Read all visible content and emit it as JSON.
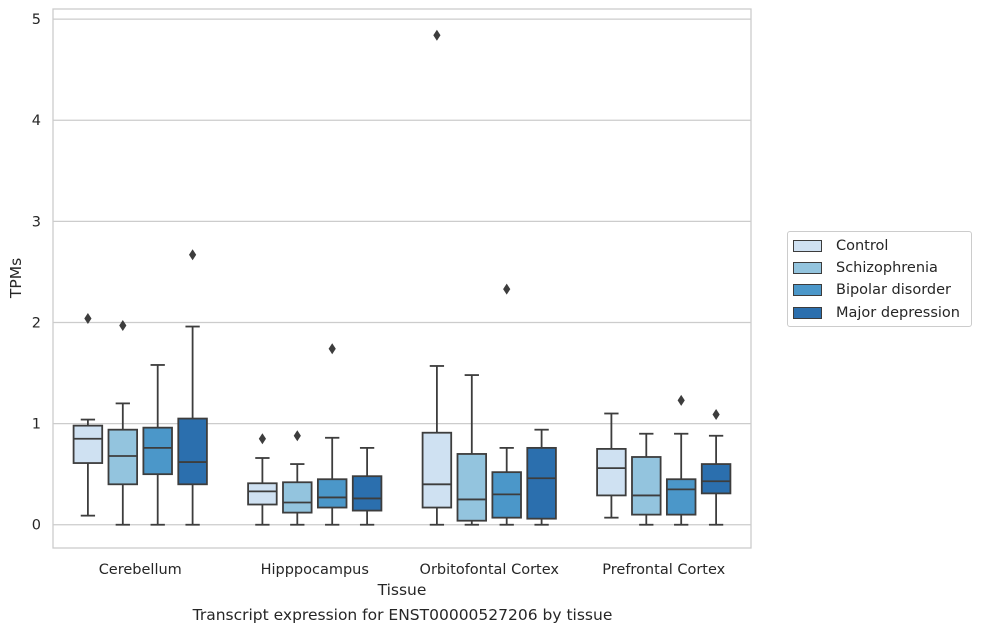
{
  "caption": "Transcript expression for ENST00000527206 by tissue",
  "chart_data": {
    "type": "box",
    "xlabel": "Tissue",
    "ylabel": "TPMs",
    "ylim": [
      -0.23,
      5.1
    ],
    "yticks": [
      0,
      1,
      2,
      3,
      4,
      5
    ],
    "grid": true,
    "legend_position": "right",
    "categories": [
      "Cerebellum",
      "Hipppocampus",
      "Orbitofontal Cortex",
      "Prefrontal Cortex"
    ],
    "series": [
      {
        "name": "Control",
        "color": "#cfe1f2",
        "boxes": [
          {
            "whisker_low": 0.09,
            "q1": 0.61,
            "median": 0.85,
            "q3": 0.98,
            "whisker_high": 1.04,
            "outliers": [
              2.04
            ]
          },
          {
            "whisker_low": 0.0,
            "q1": 0.2,
            "median": 0.33,
            "q3": 0.41,
            "whisker_high": 0.66,
            "outliers": [
              0.85
            ]
          },
          {
            "whisker_low": 0.0,
            "q1": 0.17,
            "median": 0.4,
            "q3": 0.91,
            "whisker_high": 1.57,
            "outliers": [
              4.84
            ]
          },
          {
            "whisker_low": 0.07,
            "q1": 0.29,
            "median": 0.56,
            "q3": 0.75,
            "whisker_high": 1.1,
            "outliers": []
          }
        ]
      },
      {
        "name": "Schizophrenia",
        "color": "#93c4de",
        "boxes": [
          {
            "whisker_low": 0.0,
            "q1": 0.4,
            "median": 0.68,
            "q3": 0.94,
            "whisker_high": 1.2,
            "outliers": [
              1.97
            ]
          },
          {
            "whisker_low": 0.0,
            "q1": 0.12,
            "median": 0.22,
            "q3": 0.42,
            "whisker_high": 0.6,
            "outliers": [
              0.88
            ]
          },
          {
            "whisker_low": 0.0,
            "q1": 0.04,
            "median": 0.25,
            "q3": 0.7,
            "whisker_high": 1.48,
            "outliers": []
          },
          {
            "whisker_low": 0.0,
            "q1": 0.1,
            "median": 0.29,
            "q3": 0.67,
            "whisker_high": 0.9,
            "outliers": []
          }
        ]
      },
      {
        "name": "Bipolar disorder",
        "color": "#4b97c9",
        "boxes": [
          {
            "whisker_low": 0.0,
            "q1": 0.5,
            "median": 0.76,
            "q3": 0.96,
            "whisker_high": 1.58,
            "outliers": []
          },
          {
            "whisker_low": 0.0,
            "q1": 0.17,
            "median": 0.27,
            "q3": 0.45,
            "whisker_high": 0.86,
            "outliers": [
              1.74
            ]
          },
          {
            "whisker_low": 0.0,
            "q1": 0.07,
            "median": 0.3,
            "q3": 0.52,
            "whisker_high": 0.76,
            "outliers": [
              2.33
            ]
          },
          {
            "whisker_low": 0.0,
            "q1": 0.1,
            "median": 0.35,
            "q3": 0.45,
            "whisker_high": 0.9,
            "outliers": [
              1.23
            ]
          }
        ]
      },
      {
        "name": "Major depression",
        "color": "#2b6fae",
        "boxes": [
          {
            "whisker_low": 0.0,
            "q1": 0.4,
            "median": 0.62,
            "q3": 1.05,
            "whisker_high": 1.96,
            "outliers": [
              2.67
            ]
          },
          {
            "whisker_low": 0.0,
            "q1": 0.14,
            "median": 0.26,
            "q3": 0.48,
            "whisker_high": 0.76,
            "outliers": []
          },
          {
            "whisker_low": 0.0,
            "q1": 0.06,
            "median": 0.46,
            "q3": 0.76,
            "whisker_high": 0.94,
            "outliers": []
          },
          {
            "whisker_low": 0.0,
            "q1": 0.31,
            "median": 0.43,
            "q3": 0.6,
            "whisker_high": 0.88,
            "outliers": [
              1.09
            ]
          }
        ]
      }
    ]
  }
}
